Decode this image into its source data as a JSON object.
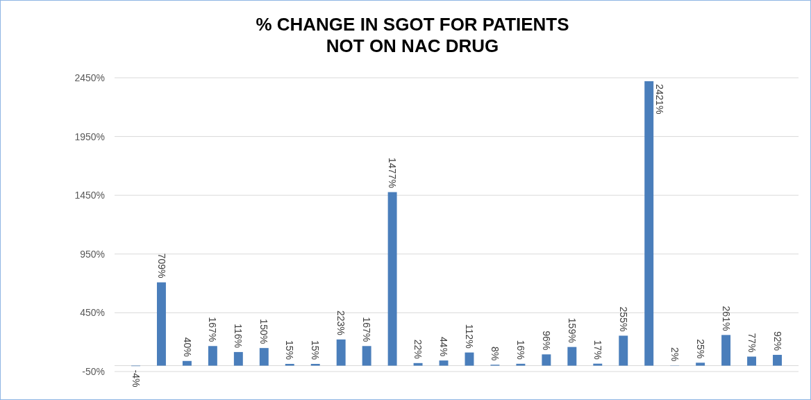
{
  "chart_data": {
    "type": "bar",
    "title": "% CHANGE IN SGOT FOR PATIENTS\nNOT ON NAC DRUG",
    "categories": [
      null,
      null,
      null,
      null,
      null,
      null,
      null,
      null,
      null,
      null,
      null,
      null,
      null,
      null,
      null,
      null,
      null,
      null,
      null,
      null,
      null,
      null,
      null,
      null,
      null,
      null
    ],
    "values": [
      -4,
      709,
      40,
      167,
      116,
      150,
      15,
      15,
      223,
      167,
      1477,
      22,
      44,
      112,
      8,
      16,
      96,
      159,
      17,
      255,
      2421,
      2,
      25,
      261,
      77,
      92
    ],
    "value_labels": [
      "-4%",
      "709%",
      "40%",
      "167%",
      "116%",
      "150%",
      "15%",
      "15%",
      "223%",
      "167%",
      "1477%",
      "22%",
      "44%",
      "112%",
      "8%",
      "16%",
      "96%",
      "159%",
      "17%",
      "255%",
      "2421%",
      "2%",
      "25%",
      "261%",
      "77%",
      "92%"
    ],
    "color": "#4a7ebb",
    "ylim": [
      -50,
      2450
    ],
    "yticks": [
      {
        "value": -50,
        "label": "-50%"
      },
      {
        "value": 450,
        "label": "450%"
      },
      {
        "value": 950,
        "label": "950%"
      },
      {
        "value": 1450,
        "label": "1450%"
      },
      {
        "value": 1950,
        "label": "1950%"
      },
      {
        "value": 2450,
        "label": "2450%"
      }
    ],
    "grid": "y",
    "tick_labels": "y"
  }
}
